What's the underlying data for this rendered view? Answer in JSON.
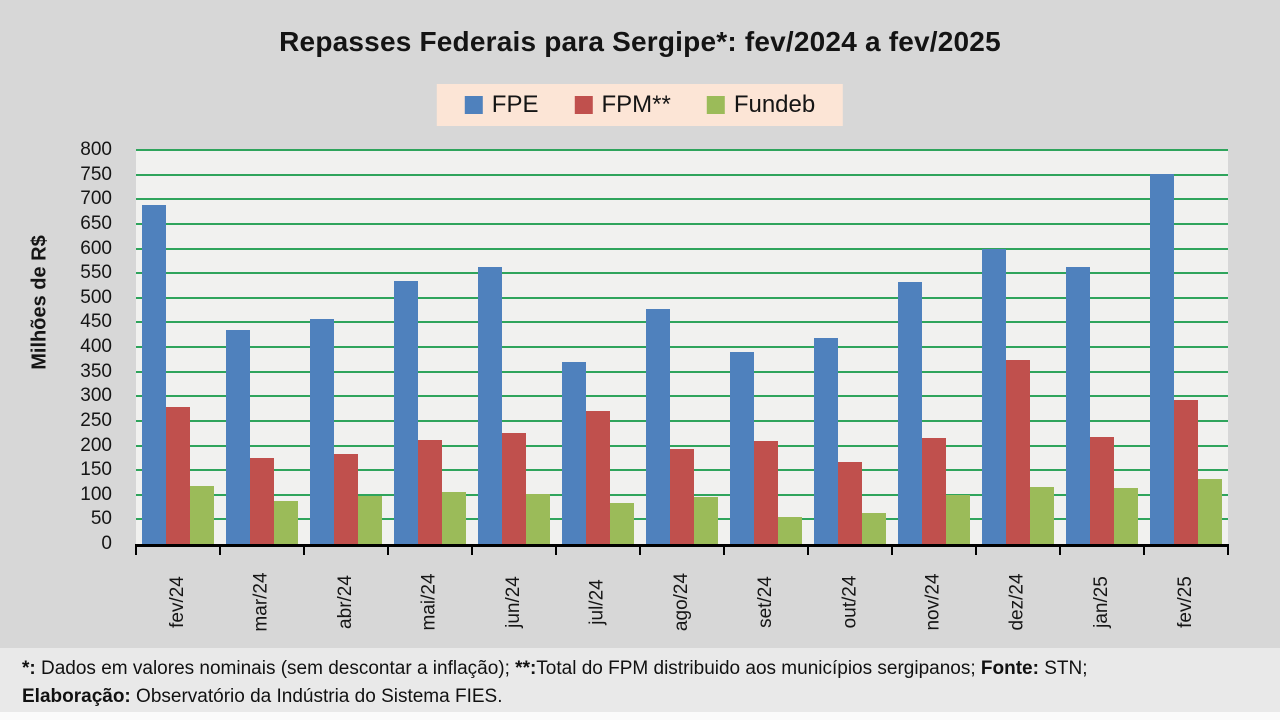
{
  "title": "Repasses Federais para Sergipe*: fev/2024 a fev/2025",
  "colors": {
    "page_background": "#d7d7d7",
    "plot_background": "#f1f1ef",
    "gridline": "#2fa45c",
    "legend_background": "#fce5d6",
    "axis": "#000000",
    "fpe_blue": "#4f81bd",
    "fpm_red": "#c0504d",
    "fundeb_green": "#9bbb59"
  },
  "chart_data": {
    "type": "bar",
    "title": "Repasses Federais para Sergipe*: fev/2024 a fev/2025",
    "xlabel": "",
    "ylabel": "Milhões de R$",
    "ylim": [
      0,
      800
    ],
    "ytick_step": 50,
    "grid": true,
    "legend_position": "top",
    "categories": [
      "fev/24",
      "mar/24",
      "abr/24",
      "mai/24",
      "jun/24",
      "jul/24",
      "ago/24",
      "set/24",
      "out/24",
      "nov/24",
      "dez/24",
      "jan/25",
      "fev/25"
    ],
    "series": [
      {
        "name": "FPE",
        "color": "#4f81bd",
        "values": [
          688,
          435,
          457,
          533,
          562,
          369,
          478,
          390,
          419,
          531,
          598,
          562,
          751
        ]
      },
      {
        "name": "FPM**",
        "color": "#c0504d",
        "values": [
          278,
          175,
          182,
          211,
          226,
          271,
          192,
          210,
          166,
          215,
          374,
          217,
          292
        ]
      },
      {
        "name": "Fundeb",
        "color": "#9bbb59",
        "values": [
          117,
          88,
          97,
          105,
          101,
          83,
          95,
          55,
          62,
          100,
          116,
          113,
          132
        ]
      }
    ]
  },
  "footer": {
    "line1": [
      {
        "text": "*:",
        "bold": true
      },
      {
        "text": " Dados em valores nominais (sem descontar a inflação); ",
        "bold": false
      },
      {
        "text": "**:",
        "bold": true
      },
      {
        "text": "Total do FPM distribuido aos municípios sergipanos; ",
        "bold": false
      },
      {
        "text": "Fonte:",
        "bold": true
      },
      {
        "text": " STN;",
        "bold": false
      }
    ],
    "line2": [
      {
        "text": "Elaboração:",
        "bold": true
      },
      {
        "text": " Observatório da Indústria do Sistema FIES.",
        "bold": false
      }
    ]
  }
}
